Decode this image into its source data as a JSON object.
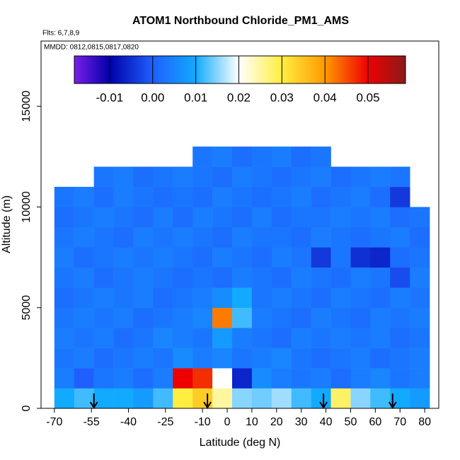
{
  "chart_data": {
    "type": "heatmap",
    "title": "ATOM1 Northbound Chloride_PM1_AMS",
    "subtitle": "Flts: 6,7,8,9",
    "annotation": "MMDD: 0812,0815,0817,0820",
    "xlabel": "Latitude (deg N)",
    "ylabel": "Altitude (m)",
    "xlim": [
      -75.4,
      85.7
    ],
    "ylim": [
      0,
      18240
    ],
    "xticks": [
      -70,
      -55,
      -40,
      -25,
      -10,
      0,
      10,
      20,
      30,
      40,
      50,
      60,
      70,
      80
    ],
    "yticks": [
      0,
      5000,
      10000,
      15000
    ],
    "lat_edges": [
      -70,
      -62,
      -54,
      -46,
      -38,
      -30,
      -22,
      -14,
      -6,
      2,
      10,
      18,
      26,
      34,
      42,
      50,
      58,
      66,
      74,
      82
    ],
    "alt_edges": [
      0,
      1000,
      2000,
      3000,
      4000,
      5000,
      6000,
      7000,
      8000,
      9000,
      10000,
      11000,
      12000,
      13000
    ],
    "values": [
      [
        0.01,
        0.012,
        0.01,
        0.01,
        0.008,
        0.012,
        0.03,
        0.034,
        0.025,
        0.015,
        0.014,
        0.016,
        0.012,
        0.01,
        0.028,
        0.015,
        0.012,
        0.01,
        0.008
      ],
      [
        0.004,
        0.0,
        0.003,
        0.004,
        0.002,
        0.004,
        0.05,
        0.047,
        0.02,
        -0.006,
        0.006,
        0.004,
        0.003,
        0.004,
        0.002,
        0.004,
        0.005,
        0.003,
        0.004
      ],
      [
        0.003,
        0.004,
        0.002,
        0.003,
        0.004,
        0.003,
        0.006,
        0.004,
        0.005,
        0.003,
        0.004,
        0.005,
        0.003,
        0.002,
        0.003,
        0.004,
        0.002,
        0.003,
        0.004
      ],
      [
        0.004,
        0.003,
        0.004,
        0.002,
        0.003,
        0.005,
        0.004,
        0.003,
        0.008,
        0.004,
        0.003,
        0.002,
        0.004,
        0.003,
        0.004,
        0.003,
        0.004,
        0.002,
        0.003
      ],
      [
        0.003,
        0.004,
        0.003,
        0.004,
        0.002,
        0.003,
        0.004,
        0.005,
        0.042,
        0.012,
        0.004,
        0.003,
        0.002,
        0.004,
        0.003,
        0.002,
        0.004,
        0.003,
        0.004
      ],
      [
        0.002,
        0.003,
        0.004,
        0.003,
        0.004,
        0.002,
        0.003,
        0.004,
        0.006,
        0.01,
        0.003,
        0.004,
        0.003,
        0.002,
        0.004,
        0.003,
        0.002,
        0.004,
        0.003
      ],
      [
        0.003,
        0.004,
        0.002,
        0.003,
        0.004,
        0.003,
        0.002,
        0.003,
        0.002,
        0.004,
        0.003,
        0.002,
        0.004,
        0.003,
        0.002,
        0.004,
        0.003,
        -0.002,
        0.004
      ],
      [
        0.004,
        0.002,
        0.003,
        0.004,
        0.003,
        0.004,
        0.003,
        0.002,
        0.004,
        0.003,
        0.002,
        0.004,
        0.003,
        -0.004,
        0.003,
        -0.005,
        -0.006,
        0.002,
        0.003
      ],
      [
        0.003,
        0.004,
        0.003,
        0.002,
        0.004,
        0.003,
        0.004,
        0.003,
        0.002,
        0.004,
        0.003,
        0.003,
        0.002,
        0.004,
        0.003,
        0.002,
        0.003,
        0.004,
        0.002
      ],
      [
        0.002,
        0.003,
        0.004,
        0.003,
        0.002,
        0.004,
        0.002,
        0.004,
        0.003,
        0.002,
        0.004,
        0.002,
        0.003,
        0.003,
        0.004,
        0.003,
        0.004,
        0.002,
        0.003
      ],
      [
        0.003,
        0.004,
        0.002,
        0.004,
        0.003,
        0.002,
        0.003,
        0.002,
        0.004,
        0.003,
        0.002,
        0.003,
        0.004,
        0.002,
        0.003,
        0.004,
        0.002,
        -0.004,
        null
      ],
      [
        null,
        null,
        0.003,
        0.004,
        0.002,
        0.003,
        0.004,
        0.003,
        0.002,
        0.004,
        0.003,
        0.002,
        0.003,
        0.004,
        0.002,
        0.003,
        0.004,
        0.003,
        null
      ],
      [
        null,
        null,
        null,
        null,
        null,
        null,
        null,
        0.003,
        0.004,
        0.002,
        0.003,
        0.004,
        0.002,
        0.003,
        null,
        null,
        null,
        null,
        null
      ]
    ],
    "clim": [
      -0.0182,
      0.0587
    ],
    "cticks": [
      -0.01,
      {
        "value": 0,
        "label": "0.00"
      },
      0.01,
      0.02,
      0.03,
      0.04,
      0.05
    ],
    "colorscale": [
      {
        "value": -0.0182,
        "color": "#7a1fe8"
      },
      {
        "value": -0.01,
        "color": "#0000a8"
      },
      {
        "value": 0,
        "color": "#1f5fff"
      },
      {
        "value": 0.01,
        "color": "#12aaff"
      },
      {
        "value": 0.02,
        "color": "#ffffff"
      },
      {
        "value": 0.03,
        "color": "#ffee40"
      },
      {
        "value": 0.04,
        "color": "#ff9a00"
      },
      {
        "value": 0.05,
        "color": "#ee0000"
      },
      {
        "value": 0.0587,
        "color": "#8b1a1a"
      }
    ],
    "arrows_x": [
      -54,
      -8,
      39,
      67
    ]
  }
}
